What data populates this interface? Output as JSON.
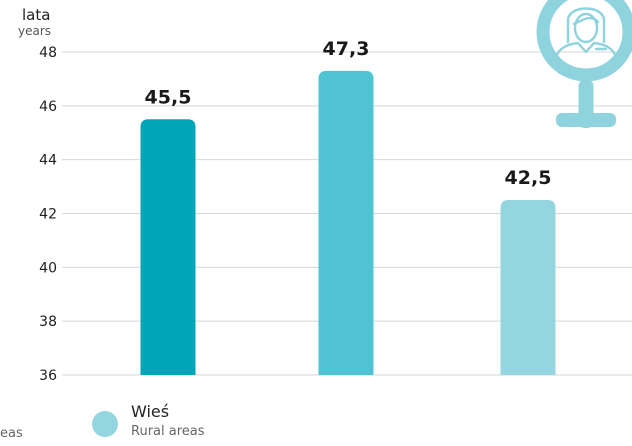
{
  "chart_data": {
    "type": "bar",
    "ylabel_pl": "lata",
    "ylabel_en": "years",
    "ylim": [
      36,
      48
    ],
    "yticks": [
      36,
      38,
      40,
      42,
      44,
      46,
      48
    ],
    "grid": true,
    "bars": [
      {
        "value": 45.5,
        "label": "45,5",
        "color": "#00a5b8"
      },
      {
        "value": 47.3,
        "label": "47,3",
        "color": "#50c3d2"
      },
      {
        "value": 42.5,
        "label": "42,5",
        "color": "#93d6e0"
      }
    ],
    "legend": [
      {
        "name_pl": "Wieś",
        "name_en": "Rural areas",
        "color": "#93d6e0"
      }
    ],
    "legend_fragment": "eas"
  },
  "colors": {
    "grid": "#d7d7d7",
    "icon": "#8fd3de"
  },
  "icon": "female-symbol-icon"
}
